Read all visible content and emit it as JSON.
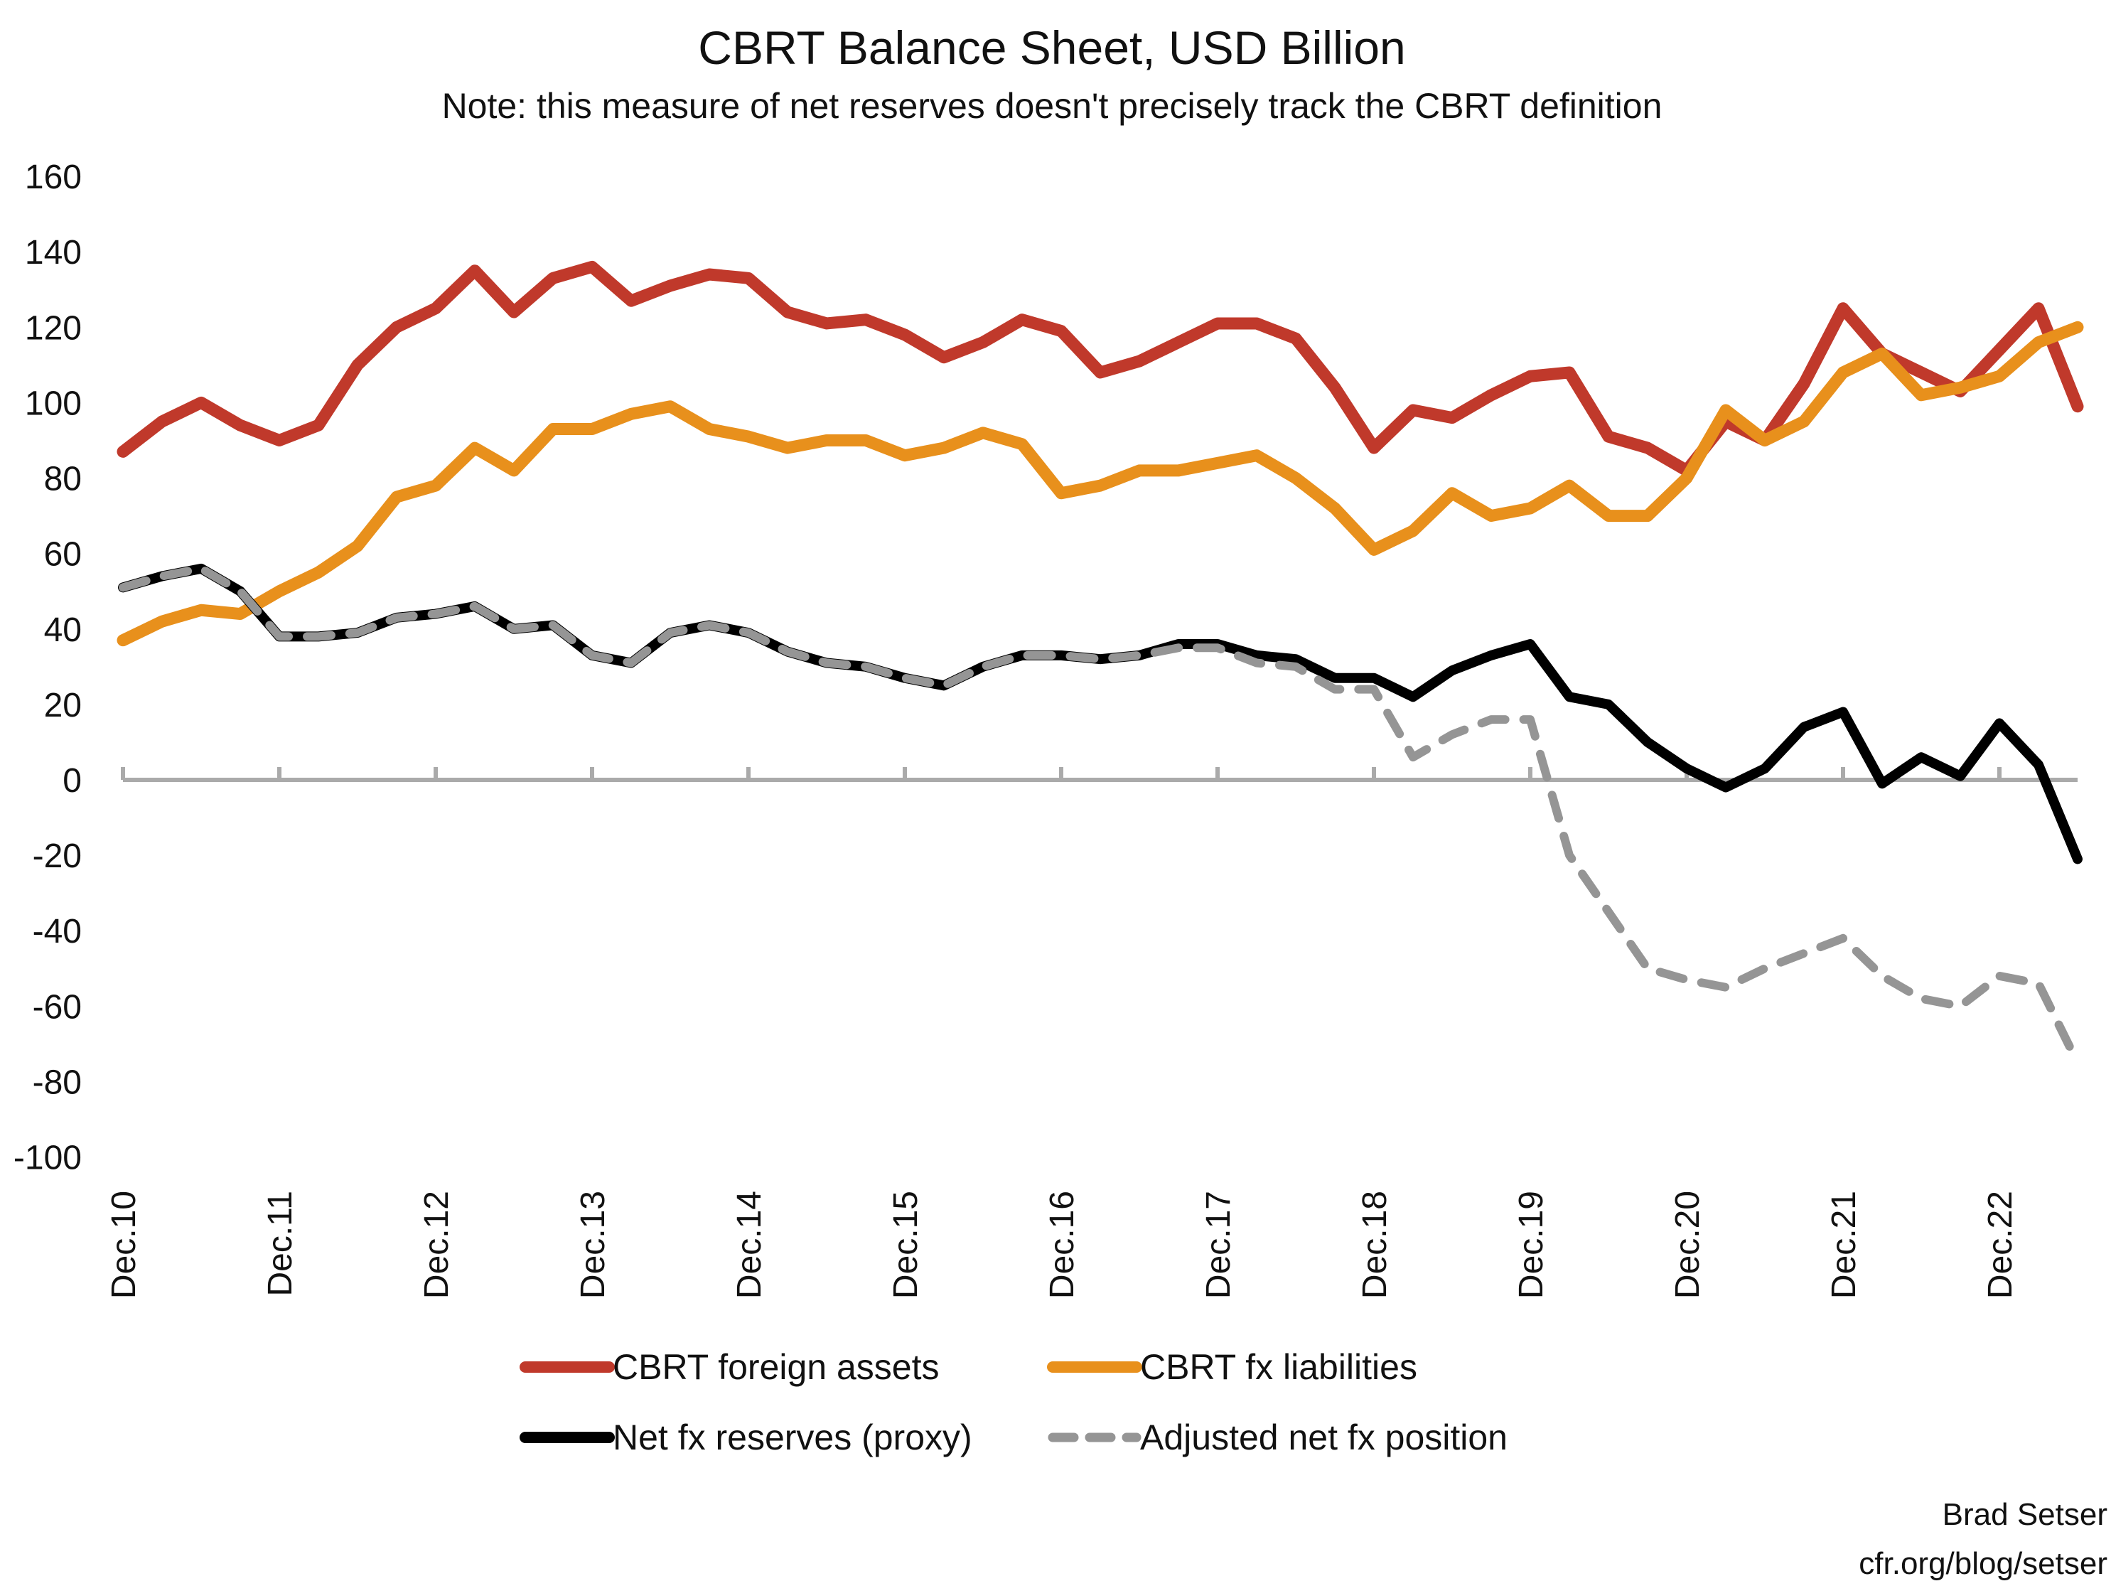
{
  "chart_data": {
    "type": "line",
    "title": "CBRT Balance Sheet, USD Billion",
    "subtitle": "Note: this measure of net reserves doesn't precisely track the CBRT definition",
    "xlabel": "",
    "ylabel": "",
    "ylim": [
      -100,
      160
    ],
    "yticks": [
      160,
      140,
      120,
      100,
      80,
      60,
      40,
      20,
      0,
      -20,
      -40,
      -60,
      -80,
      -100
    ],
    "xtick_labels": [
      "Dec.10",
      "Dec.11",
      "Dec.12",
      "Dec.13",
      "Dec.14",
      "Dec.15",
      "Dec.16",
      "Dec.17",
      "Dec.18",
      "Dec.19",
      "Dec.20",
      "Dec.21",
      "Dec.22"
    ],
    "grid": false,
    "legend_position": "bottom",
    "x_start": "2010-12",
    "x_frequency": "quarterly",
    "x_end": "2023-06",
    "series": [
      {
        "name": "CBRT foreign assets",
        "color": "#c0392b",
        "style": "solid",
        "values": [
          87,
          95,
          100,
          94,
          90,
          94,
          110,
          120,
          125,
          135,
          124,
          133,
          136,
          127,
          131,
          134,
          133,
          124,
          121,
          122,
          118,
          112,
          116,
          122,
          119,
          108,
          111,
          116,
          121,
          121,
          117,
          104,
          88,
          98,
          96,
          102,
          107,
          108,
          91,
          88,
          82,
          95,
          90,
          105,
          125,
          113,
          108,
          103,
          114,
          125,
          99
        ]
      },
      {
        "name": "CBRT fx liabilities",
        "color": "#e8901c",
        "style": "solid",
        "values": [
          37,
          42,
          45,
          44,
          50,
          55,
          62,
          75,
          78,
          88,
          82,
          93,
          93,
          97,
          99,
          93,
          91,
          88,
          90,
          90,
          86,
          88,
          92,
          89,
          76,
          78,
          82,
          82,
          84,
          86,
          80,
          72,
          61,
          66,
          76,
          70,
          72,
          78,
          70,
          70,
          80,
          98,
          90,
          95,
          108,
          113,
          102,
          104,
          107,
          116,
          120
        ]
      },
      {
        "name": "Net fx reserves  (proxy)",
        "color": "#000000",
        "style": "solid",
        "values": [
          51,
          54,
          56,
          50,
          38,
          38,
          39,
          43,
          44,
          46,
          40,
          41,
          33,
          31,
          39,
          41,
          39,
          34,
          31,
          30,
          27,
          25,
          30,
          33,
          33,
          32,
          33,
          36,
          36,
          33,
          32,
          27,
          27,
          22,
          29,
          33,
          36,
          22,
          20,
          10,
          3,
          -2,
          3,
          14,
          18,
          -1,
          6,
          1,
          15,
          4,
          -21
        ]
      },
      {
        "name": "Adjusted net fx position",
        "color": "#959595",
        "style": "dashed",
        "values": [
          51,
          54,
          56,
          50,
          38,
          38,
          39,
          43,
          44,
          46,
          40,
          41,
          33,
          31,
          39,
          41,
          39,
          34,
          31,
          30,
          27,
          25,
          30,
          33,
          33,
          32,
          33,
          35,
          35,
          31,
          30,
          24,
          24,
          6,
          12,
          16,
          16,
          -20,
          -35,
          -50,
          -53,
          -55,
          -50,
          -46,
          -42,
          -52,
          -58,
          -60,
          -52,
          -54,
          -75
        ]
      }
    ],
    "zero_line_color": "#aaaaaa"
  },
  "credit": {
    "author": "Brad Setser",
    "source": "cfr.org/blog/setser"
  }
}
